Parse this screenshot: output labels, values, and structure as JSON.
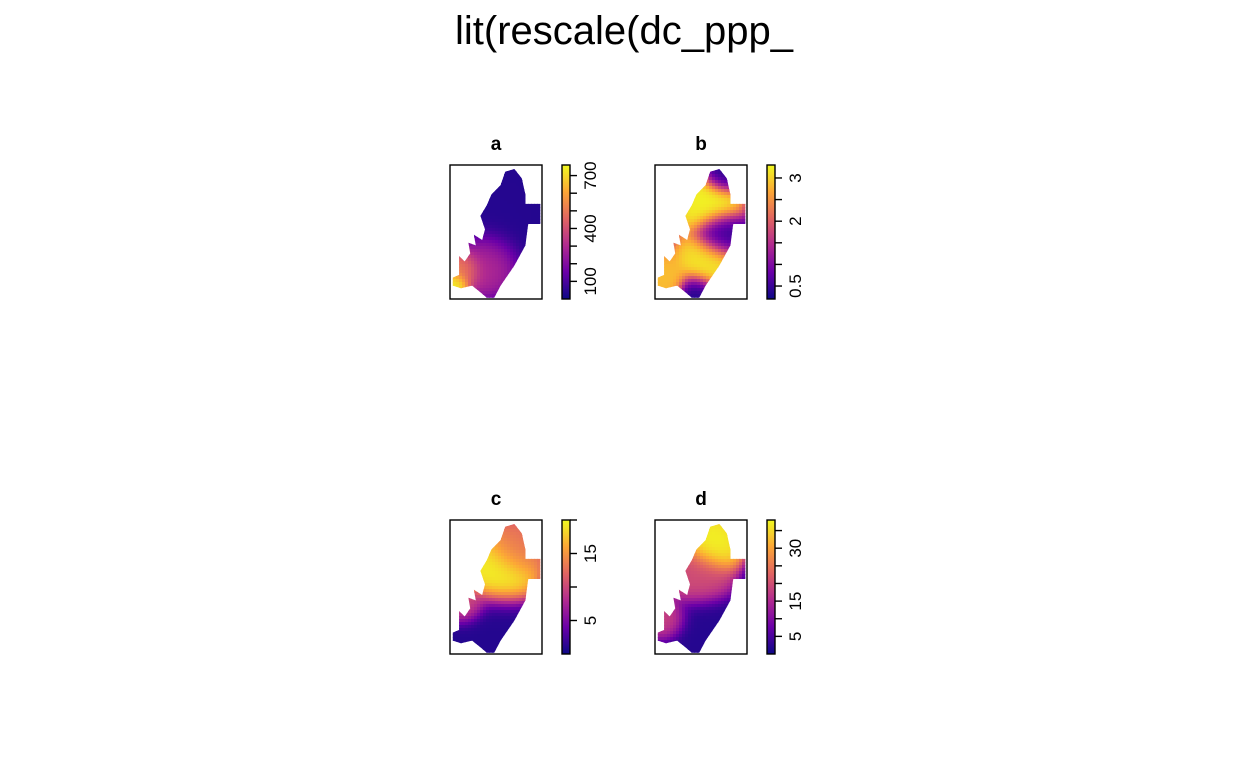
{
  "chart_data": {
    "type": "heatmap",
    "title": "lit(rescale(dc_ppp_",
    "colormap": "plasma",
    "colors": [
      "#0d0887",
      "#6a00a8",
      "#b12a90",
      "#e16462",
      "#fca636",
      "#f0f921"
    ],
    "panels": [
      {
        "id": "a",
        "title": "a",
        "legend_ticks": [
          100,
          400,
          700
        ],
        "legend_minor_ticks": [
          100,
          200,
          300,
          400,
          500,
          600,
          700
        ],
        "range": [
          0,
          760
        ],
        "hotspots": [
          {
            "x": 0.05,
            "y": 0.89,
            "value": 760,
            "spread": 0.07
          },
          {
            "x": 0.14,
            "y": 0.76,
            "value": 560,
            "spread": 0.1
          },
          {
            "x": 0.38,
            "y": 0.7,
            "value": 330,
            "spread": 0.16
          },
          {
            "x": 0.5,
            "y": 0.35,
            "value": 40,
            "spread": 0.3
          }
        ]
      },
      {
        "id": "b",
        "title": "b",
        "legend_ticks": [
          0.5,
          2,
          3
        ],
        "legend_minor_ticks": [
          0.5,
          1,
          1.5,
          2,
          2.5,
          3
        ],
        "range": [
          0.2,
          3.3
        ],
        "hotspots": [
          {
            "x": 0.55,
            "y": 0.28,
            "value": 3.3,
            "spread": 0.16
          },
          {
            "x": 0.55,
            "y": 0.72,
            "value": 3.2,
            "spread": 0.15
          },
          {
            "x": 0.72,
            "y": 0.07,
            "value": 0.3,
            "spread": 0.1
          },
          {
            "x": 0.7,
            "y": 0.52,
            "value": 0.4,
            "spread": 0.12
          },
          {
            "x": 0.1,
            "y": 0.85,
            "value": 2.9,
            "spread": 0.12
          },
          {
            "x": 0.45,
            "y": 0.95,
            "value": 0.3,
            "spread": 0.1
          }
        ]
      },
      {
        "id": "c",
        "title": "c",
        "legend_ticks": [
          5,
          15
        ],
        "legend_minor_ticks": [
          5,
          10,
          15,
          20
        ],
        "range": [
          0,
          20
        ],
        "hotspots": [
          {
            "x": 0.52,
            "y": 0.38,
            "value": 20,
            "spread": 0.18
          },
          {
            "x": 0.7,
            "y": 0.22,
            "value": 13,
            "spread": 0.14
          },
          {
            "x": 0.18,
            "y": 0.64,
            "value": 11,
            "spread": 0.1
          },
          {
            "x": 0.45,
            "y": 0.85,
            "value": 1,
            "spread": 0.22
          }
        ]
      },
      {
        "id": "d",
        "title": "d",
        "legend_ticks": [
          5,
          15,
          30
        ],
        "legend_minor_ticks": [
          5,
          10,
          15,
          20,
          25,
          30,
          35
        ],
        "range": [
          0,
          38
        ],
        "hotspots": [
          {
            "x": 0.62,
            "y": 0.18,
            "value": 38,
            "spread": 0.14
          },
          {
            "x": 0.45,
            "y": 0.42,
            "value": 20,
            "spread": 0.16
          },
          {
            "x": 0.15,
            "y": 0.75,
            "value": 20,
            "spread": 0.1
          },
          {
            "x": 0.5,
            "y": 0.85,
            "value": 2,
            "spread": 0.2
          }
        ]
      }
    ]
  }
}
